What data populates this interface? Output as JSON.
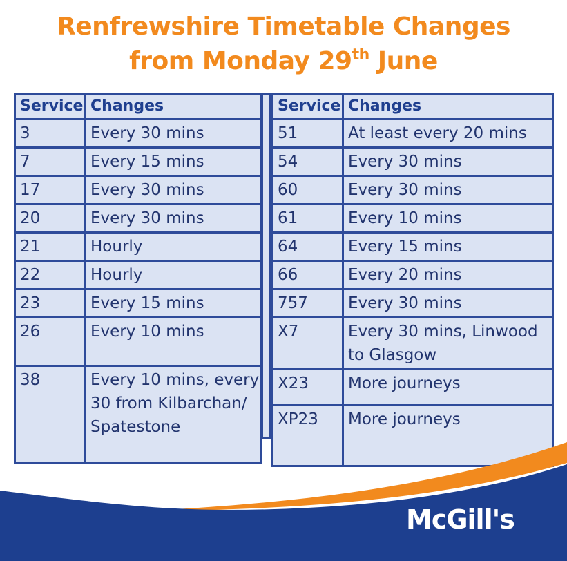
{
  "title": {
    "line1": "Renfrewshire Timetable Changes",
    "line2_pre": "from Monday 29",
    "line2_sup": "th",
    "line2_post": " June"
  },
  "headers": {
    "service": "Service",
    "changes": "Changes"
  },
  "left_rows": [
    {
      "service": "3",
      "change": "Every 30 mins"
    },
    {
      "service": "7",
      "change": "Every 15 mins"
    },
    {
      "service": "17",
      "change": "Every 30 mins"
    },
    {
      "service": "20",
      "change": "Every 30 mins"
    },
    {
      "service": "21",
      "change": "Hourly"
    },
    {
      "service": "22",
      "change": "Hourly"
    },
    {
      "service": "23",
      "change": "Every 15 mins"
    },
    {
      "service": "26",
      "change": "Every 10 mins"
    },
    {
      "service": "38",
      "change": "Every 10 mins, every 30 from Kilbarchan/ Spatestone"
    }
  ],
  "right_rows": [
    {
      "service": "51",
      "change": "At least every 20 mins"
    },
    {
      "service": "54",
      "change": "Every 30 mins"
    },
    {
      "service": "60",
      "change": "Every 30 mins"
    },
    {
      "service": "61",
      "change": "Every 10 mins"
    },
    {
      "service": "64",
      "change": "Every 15 mins"
    },
    {
      "service": "66",
      "change": "Every 20 mins"
    },
    {
      "service": "757",
      "change": "Every 30 mins"
    },
    {
      "service": "X7",
      "change": "Every 30 mins, Linwood to Glasgow"
    },
    {
      "service": "X23",
      "change": "More journeys"
    },
    {
      "service": "XP23",
      "change": "More journeys"
    }
  ],
  "logo": {
    "text": "McGill's"
  },
  "colors": {
    "title": "#f28a1e",
    "table_border": "#2e4b9a",
    "table_fill": "#dbe3f3",
    "swoosh_blue": "#1d3f8f",
    "swoosh_orange": "#f28a1e"
  }
}
